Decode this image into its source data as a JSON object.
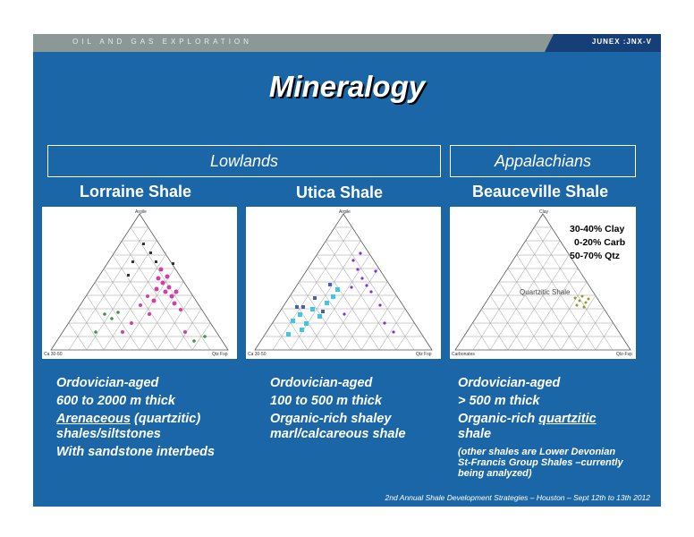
{
  "header": {
    "company": "OIL AND GAS EXPLORATION",
    "ticker": "JUNEX :JNX-V"
  },
  "title": "Mineralogy",
  "regions": {
    "lowlands": "Lowlands",
    "appalachians": "Appalachians"
  },
  "columns": [
    {
      "name": "Lorraine Shale",
      "lines": [
        "Ordovician-aged",
        "600 to 2000 m thick"
      ],
      "highlight": "Arenaceous",
      "highlight_rest": " (quartzitic)",
      "line4": "shales/siltstones",
      "line5": "With sandstone interbeds",
      "diagram_labels": {
        "apex": "Argile",
        "left": "Ca 30-50",
        "right": "Qtz Fsp"
      }
    },
    {
      "name": "Utica Shale",
      "lines": [
        "Ordovician-aged",
        "100 to 500 m thick"
      ],
      "line3": "Organic-rich shaley",
      "line4": "marl/calcareous shale",
      "diagram_labels": {
        "apex": "Argile",
        "left": "Ca 30-50",
        "right": "Qtz Fsp"
      }
    },
    {
      "name": "Beauceville Shale",
      "lines": [
        "Ordovician-aged",
        "> 500 m thick"
      ],
      "line3_prefix": "Organic-rich ",
      "line3_highlight": "quartzitic",
      "line4": "shale",
      "note": [
        "(other shales are Lower Devonian",
        "St-Francis Group Shales –currently",
        "being analyzed)"
      ],
      "diagram_labels": {
        "apex": "Clay",
        "left": "Carbonates",
        "right": "Qtz-Fsp",
        "zone": "Quartzitic Shale"
      },
      "composition": [
        "30-40% Clay",
        "0-20% Carb",
        "50-70% Qtz"
      ]
    }
  ],
  "footer": "2nd Annual Shale Development Strategies – Houston – Sept 12th to 13th 2012",
  "colors": {
    "slide_bg": "#1a66a6",
    "header_bar": "#8c9896",
    "ticker_bg": "#163f78"
  }
}
